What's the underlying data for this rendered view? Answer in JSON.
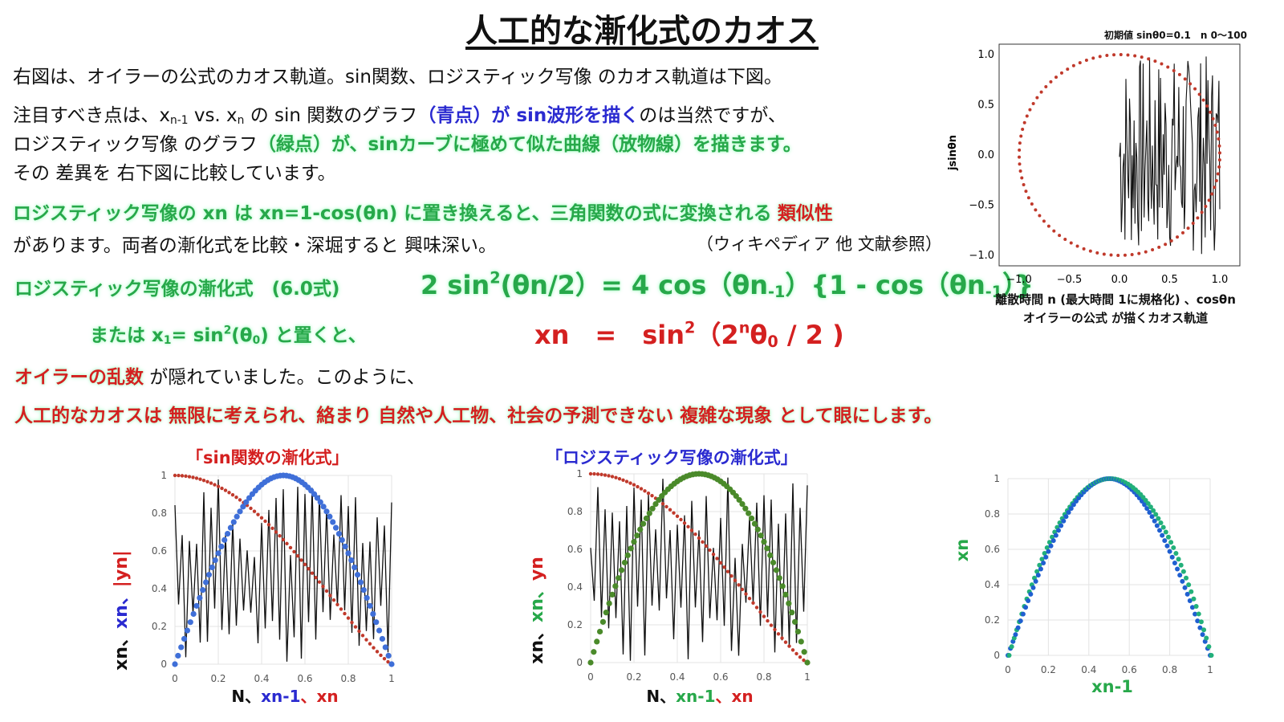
{
  "title": "人工的な漸化式のカオス",
  "para1": "右図は、オイラーの公式のカオス軌道。sin関数、ロジスティック写像 のカオス軌道は下図。",
  "para2": {
    "a": "注目すべき点は、x",
    "a_sub": "n-1",
    "b": " vs. x",
    "b_sub": "n",
    "c": " の sin 関数のグラフ",
    "d": "（青点）が sin波形を描く",
    "e": "のは当然ですが、"
  },
  "para3": {
    "a": "ロジスティック写像 のグラフ",
    "b": "（緑点）が、sinカーブに極めて似た曲線（放物線）を描きます。"
  },
  "para4": "その 差異を 右下図に比較しています。",
  "para5": {
    "a": "ロジスティック写像の xn は xn=1-cos(θn) に置き換えると、三角関数の式に変換される",
    "b": "類似性"
  },
  "para6": {
    "a": "があります。両者の漸化式を比較・深堀すると 興味深い。",
    "b": "（ウィキペディア 他 文献参照）"
  },
  "eq1": {
    "label": "ロジスティック写像の漸化式　(6.0式)",
    "p1": "2 sin",
    "p1_sup": "2",
    "p2": "(θn/2）= 4 cos（θn",
    "p2_sub": "-1",
    "p3": "）{1 - cos（θn",
    "p3_sub": "-1",
    "p4": "）}"
  },
  "eq2": {
    "label_a": "または x",
    "label_sub": "1",
    "label_b": "= sin",
    "label_sup": "2",
    "label_c": "(θ",
    "label_sub2": "0",
    "label_d": ") と置くと、",
    "r1": "xn　=　sin",
    "r1_sup": "2",
    "r2": "（2",
    "r2_sup": "n",
    "r3": "θ",
    "r3_sub": "0",
    "r4": " / 2 )"
  },
  "para7": {
    "a": "オイラーの乱数",
    "b": " が隠れていました。このように、"
  },
  "para8": "人工的なカオスは 無限に考えられ、絡まり 自然や人工物、社会の予測できない 複雑な現象 として眼にします。",
  "euler_chart": {
    "header": "初期値 sinθ0=0.1　n 0〜100",
    "ylabel": "jsinθn",
    "xticks": [
      "−1.0",
      "−0.5",
      "0.0",
      "0.5",
      "1.0"
    ],
    "yticks": [
      "1.0",
      "0.5",
      "0.0",
      "−0.5",
      "−1.0"
    ],
    "caption1": "離散時間 n (最大時間 1に規格化) 、cosθn",
    "caption2": "オイラーの公式 が描くカオス軌道",
    "dot_color": "#c0392b"
  },
  "sin_chart": {
    "title": "「sin関数の漸化式」",
    "ylabel": {
      "a": "xn、",
      "b": "xn、",
      "c": "|yn|"
    },
    "xlabel": {
      "a": "N、",
      "b": "xn-1",
      "c": "、xn"
    },
    "xticks": [
      "0",
      "0.2",
      "0.4",
      "0.6",
      "0.8",
      "1"
    ],
    "yticks": [
      "1",
      "0.8",
      "0.6",
      "0.4",
      "0.2",
      "0"
    ],
    "dot_color": "#3f6fd8"
  },
  "logistic_chart": {
    "title": "「ロジスティック写像の漸化式」",
    "ylabel": {
      "a": "xn、",
      "b": "xn、",
      "c": "yn"
    },
    "xlabel": {
      "a": "N、",
      "b": "xn-1",
      "c": "、xn"
    },
    "xticks": [
      "0",
      "0.2",
      "0.4",
      "0.6",
      "0.8",
      "1"
    ],
    "yticks": [
      "1",
      "0.8",
      "0.6",
      "0.4",
      "0.2",
      "0"
    ],
    "dot_color": "#4a8a2a"
  },
  "compare_chart": {
    "ylabel": "xn",
    "xlabel": "xn-1",
    "xticks": [
      "0",
      "0.2",
      "0.4",
      "0.6",
      "0.8",
      "1"
    ],
    "yticks": [
      "1",
      "0.8",
      "0.6",
      "0.4",
      "0.2",
      "0"
    ],
    "color_a": "#1f5fd0",
    "color_b": "#22b07a"
  }
}
